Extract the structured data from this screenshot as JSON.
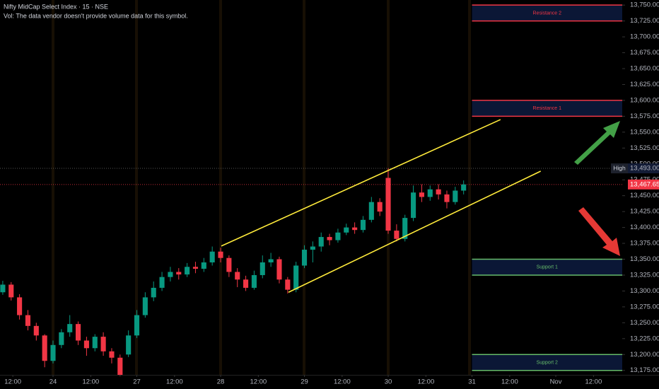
{
  "chart_data": {
    "type": "candlestick",
    "title": "Nifty MidCap Select Index · 15 · NSE",
    "subtitle": "Vol: The data vendor doesn't provide volume data for this symbol.",
    "up_color": "#089981",
    "down_color": "#f23645",
    "xlim": [
      -0.633,
      6.793
    ],
    "ylim": [
      13168,
      13758
    ],
    "xticks": [
      {
        "value": -0.48,
        "label": "12:00"
      },
      {
        "value": 0,
        "label": "24"
      },
      {
        "value": 0.45,
        "label": "12:00"
      },
      {
        "value": 1,
        "label": "27"
      },
      {
        "value": 1.45,
        "label": "12:00"
      },
      {
        "value": 2,
        "label": "28"
      },
      {
        "value": 2.45,
        "label": "12:00"
      },
      {
        "value": 3,
        "label": "29"
      },
      {
        "value": 3.45,
        "label": "12:00"
      },
      {
        "value": 4,
        "label": "30"
      },
      {
        "value": 4.45,
        "label": "12:00"
      },
      {
        "value": 5,
        "label": "31"
      },
      {
        "value": 5.45,
        "label": "12:00"
      },
      {
        "value": 6,
        "label": "Nov"
      },
      {
        "value": 6.45,
        "label": "12:00"
      }
    ],
    "yticks": [
      {
        "value": 13175,
        "label": "13,175.00"
      },
      {
        "value": 13200,
        "label": "13,200.00"
      },
      {
        "value": 13225,
        "label": "13,225.00"
      },
      {
        "value": 13250,
        "label": "13,250.00"
      },
      {
        "value": 13275,
        "label": "13,275.00"
      },
      {
        "value": 13300,
        "label": "13,300.00"
      },
      {
        "value": 13325,
        "label": "13,325.00"
      },
      {
        "value": 13350,
        "label": "13,350.00"
      },
      {
        "value": 13375,
        "label": "13,375.00"
      },
      {
        "value": 13400,
        "label": "13,400.00"
      },
      {
        "value": 13425,
        "label": "13,425.00"
      },
      {
        "value": 13450,
        "label": "13,450.00"
      },
      {
        "value": 13475,
        "label": "13,475.00"
      },
      {
        "value": 13500,
        "label": "13,500.00"
      },
      {
        "value": 13525,
        "label": "13,525.00"
      },
      {
        "value": 13550,
        "label": "13,550.00"
      },
      {
        "value": 13575,
        "label": "13,575.00"
      },
      {
        "value": 13600,
        "label": "13,600.00"
      },
      {
        "value": 13625,
        "label": "13,625.00"
      },
      {
        "value": 13650,
        "label": "13,650.00"
      },
      {
        "value": 13675,
        "label": "13,675.00"
      },
      {
        "value": 13700,
        "label": "13,700.00"
      },
      {
        "value": 13725,
        "label": "13,725.00"
      },
      {
        "value": 13750,
        "label": "13,750.00"
      }
    ],
    "x": [
      -0.6,
      -0.5,
      -0.4,
      -0.3,
      -0.2,
      -0.1,
      0,
      0.1,
      0.2,
      0.3,
      0.4,
      0.5,
      0.6,
      0.7,
      0.8,
      0.9,
      1,
      1.1,
      1.2,
      1.3,
      1.4,
      1.5,
      1.6,
      1.7,
      1.8,
      1.9,
      2,
      2.1,
      2.2,
      2.3,
      2.4,
      2.5,
      2.6,
      2.7,
      2.8,
      2.9,
      3,
      3.1,
      3.2,
      3.3,
      3.4,
      3.5,
      3.6,
      3.7,
      3.8,
      3.9,
      4,
      4.1,
      4.2,
      4.3,
      4.4,
      4.5,
      4.6,
      4.7,
      4.8,
      4.9
    ],
    "open": [
      13298,
      13310,
      13290,
      13262,
      13245,
      13230,
      13190,
      13215,
      13235,
      13248,
      13222,
      13210,
      13228,
      13205,
      13195,
      13200,
      13230,
      13262,
      13290,
      13305,
      13322,
      13330,
      13326,
      13338,
      13335,
      13345,
      13362,
      13352,
      13330,
      13318,
      13305,
      13325,
      13345,
      13350,
      13318,
      13302,
      13340,
      13365,
      13370,
      13385,
      13380,
      13392,
      13400,
      13396,
      13412,
      13440,
      13478,
      13395,
      13382,
      13415,
      13455,
      13448,
      13460,
      13452,
      13440,
      13458
    ],
    "high": [
      13316,
      13314,
      13295,
      13270,
      13250,
      13232,
      13222,
      13240,
      13262,
      13252,
      13228,
      13232,
      13235,
      13210,
      13200,
      13238,
      13270,
      13298,
      13315,
      13330,
      13338,
      13336,
      13344,
      13346,
      13352,
      13370,
      13368,
      13356,
      13336,
      13324,
      13332,
      13356,
      13360,
      13354,
      13322,
      13346,
      13372,
      13378,
      13392,
      13390,
      13398,
      13406,
      13408,
      13418,
      13448,
      13446,
      13493,
      13405,
      13420,
      13466,
      13468,
      13466,
      13468,
      13458,
      13464,
      13474
    ],
    "low": [
      13294,
      13285,
      13255,
      13238,
      13222,
      13180,
      13186,
      13210,
      13228,
      13215,
      13198,
      13205,
      13198,
      13186,
      13166,
      13196,
      13226,
      13258,
      13284,
      13300,
      13315,
      13318,
      13322,
      13328,
      13330,
      13340,
      13345,
      13322,
      13306,
      13300,
      13302,
      13320,
      13338,
      13312,
      13296,
      13298,
      13336,
      13345,
      13362,
      13372,
      13376,
      13388,
      13390,
      13392,
      13408,
      13418,
      13390,
      13378,
      13378,
      13410,
      13440,
      13442,
      13444,
      13430,
      13436,
      13452
    ],
    "close": [
      13310,
      13290,
      13262,
      13245,
      13230,
      13190,
      13215,
      13235,
      13248,
      13222,
      13210,
      13228,
      13205,
      13195,
      13168,
      13230,
      13262,
      13290,
      13305,
      13322,
      13330,
      13326,
      13338,
      13335,
      13345,
      13362,
      13352,
      13330,
      13318,
      13305,
      13325,
      13345,
      13350,
      13318,
      13302,
      13340,
      13365,
      13370,
      13385,
      13380,
      13392,
      13400,
      13396,
      13412,
      13440,
      13425,
      13395,
      13382,
      13415,
      13455,
      13448,
      13460,
      13452,
      13440,
      13458,
      13467.65
    ],
    "zones": [
      {
        "label": "Resistance 2",
        "top": 13750,
        "bottom": 13725,
        "x_start": 5,
        "color": "#f23645"
      },
      {
        "label": "Resistance 1",
        "top": 13600,
        "bottom": 13575,
        "x_start": 5,
        "color": "#f23645"
      },
      {
        "label": "Support 1",
        "top": 13350,
        "bottom": 13325,
        "x_start": 5,
        "color": "#66bb6a"
      },
      {
        "label": "Support 2",
        "top": 13200,
        "bottom": 13175,
        "x_start": 5,
        "color": "#66bb6a"
      }
    ],
    "trendlines": [
      {
        "x": [
          2.008,
          5.34
        ],
        "y": [
          13370.7,
          13569.8
        ],
        "color": "#ffeb3b"
      },
      {
        "x": [
          2.81,
          5.82
        ],
        "y": [
          13298,
          13488.6
        ],
        "color": "#ffeb3b"
      }
    ],
    "high_line": {
      "label": "High",
      "value": 13493,
      "value_label": "13,493.00"
    },
    "last_price": {
      "value": 13467.65,
      "value_label": "13,467.65"
    }
  }
}
